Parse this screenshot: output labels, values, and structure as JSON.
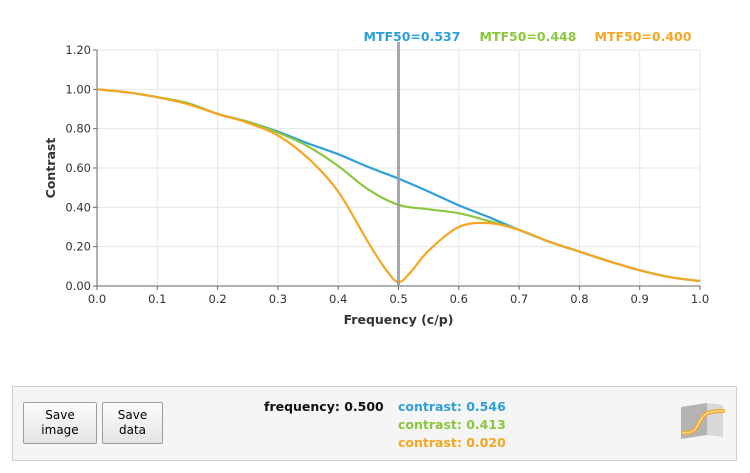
{
  "chart_data": {
    "type": "line",
    "xlabel": "Frequency (c/p)",
    "ylabel": "Contrast",
    "xlim": [
      0,
      1
    ],
    "ylim": [
      0,
      1.2
    ],
    "x_ticks": [
      "0.0",
      "0.1",
      "0.2",
      "0.3",
      "0.4",
      "0.5",
      "0.6",
      "0.7",
      "0.8",
      "0.9",
      "1.0"
    ],
    "y_ticks": [
      "0.00",
      "0.20",
      "0.40",
      "0.60",
      "0.80",
      "1.00",
      "1.20"
    ],
    "grid": true,
    "cursor_x": 0.5,
    "series": [
      {
        "color": "#2e9fd8",
        "x": [
          0,
          0.05,
          0.1,
          0.15,
          0.2,
          0.25,
          0.3,
          0.35,
          0.4,
          0.45,
          0.5,
          0.55,
          0.6,
          0.65,
          0.7,
          0.75,
          0.8,
          0.85,
          0.9,
          0.95,
          1.0
        ],
        "y": [
          1.0,
          0.985,
          0.96,
          0.93,
          0.875,
          0.835,
          0.785,
          0.725,
          0.67,
          0.605,
          0.546,
          0.48,
          0.41,
          0.35,
          0.285,
          0.225,
          0.175,
          0.125,
          0.08,
          0.045,
          0.025
        ]
      },
      {
        "color": "#8cc63e",
        "x": [
          0,
          0.05,
          0.1,
          0.15,
          0.2,
          0.25,
          0.3,
          0.35,
          0.4,
          0.45,
          0.5,
          0.55,
          0.6,
          0.65,
          0.7,
          0.75,
          0.8,
          0.85,
          0.9,
          0.95,
          1.0
        ],
        "y": [
          1.0,
          0.985,
          0.96,
          0.93,
          0.875,
          0.835,
          0.78,
          0.71,
          0.61,
          0.49,
          0.413,
          0.39,
          0.37,
          0.33,
          0.285,
          0.225,
          0.175,
          0.125,
          0.08,
          0.045,
          0.025
        ]
      },
      {
        "color": "#f5a623",
        "x": [
          0,
          0.05,
          0.1,
          0.15,
          0.2,
          0.25,
          0.3,
          0.35,
          0.4,
          0.45,
          0.48,
          0.5,
          0.52,
          0.55,
          0.6,
          0.65,
          0.7,
          0.75,
          0.8,
          0.85,
          0.9,
          0.95,
          1.0
        ],
        "y": [
          1.0,
          0.985,
          0.96,
          0.925,
          0.875,
          0.83,
          0.765,
          0.65,
          0.48,
          0.22,
          0.08,
          0.02,
          0.07,
          0.18,
          0.3,
          0.32,
          0.285,
          0.225,
          0.175,
          0.125,
          0.08,
          0.045,
          0.025
        ]
      }
    ]
  },
  "mtf_labels": [
    {
      "text": "MTF50=0.537",
      "color": "#2e9fd8"
    },
    {
      "text": "MTF50=0.448",
      "color": "#8cc63e"
    },
    {
      "text": "MTF50=0.400",
      "color": "#f5a623"
    }
  ],
  "buttons": {
    "save_image": "Save\nimage",
    "save_data": "Save\ndata"
  },
  "readout": {
    "frequency": "frequency: 0.500",
    "contrasts": [
      {
        "text": "contrast: 0.546",
        "color": "#2e9fd8"
      },
      {
        "text": "contrast: 0.413",
        "color": "#8cc63e"
      },
      {
        "text": "contrast: 0.020",
        "color": "#f5a623"
      }
    ]
  },
  "colors": {
    "cursor": "#9a9aa4",
    "grid": "#e6e6e6",
    "axis": "#666666"
  },
  "logo": {
    "icon": "mtf-curve-logo-icon"
  }
}
